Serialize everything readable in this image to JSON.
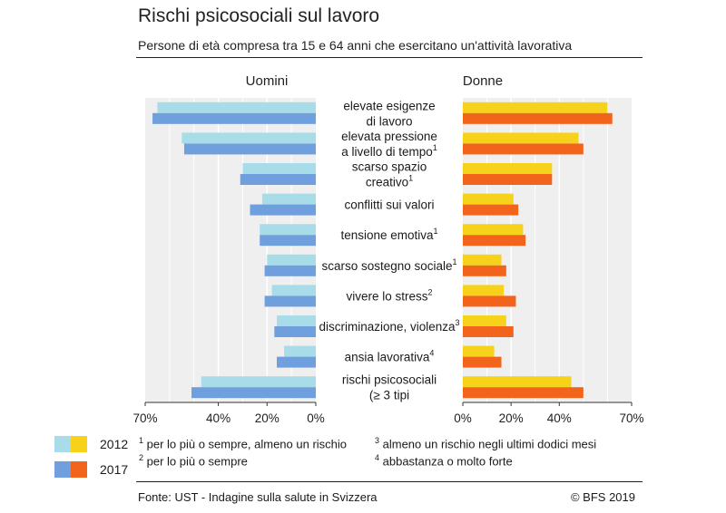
{
  "header": {
    "title": "Rischi psicosociali sul lavoro",
    "subtitle": "Persone di età compresa tra 15 e 64 anni che esercitano un'attività lavorativa"
  },
  "colors": {
    "men_2012": "#a7dce8",
    "men_2017": "#6f9fdc",
    "women_2012": "#f7d21b",
    "women_2017": "#f2641b",
    "panel_bg": "#efefef",
    "grid": "#ffffff"
  },
  "chart_data": {
    "type": "bar",
    "orientation": "horizontal",
    "layout": "back-to-back",
    "panels": [
      "Uomini",
      "Donne"
    ],
    "categories": [
      {
        "label": [
          "elevate esigenze",
          "di lavoro"
        ],
        "sup": ""
      },
      {
        "label": [
          "elevata pressione",
          "a livello di tempo"
        ],
        "sup": "1"
      },
      {
        "label": [
          "scarso spazio",
          "creativo"
        ],
        "sup": "1"
      },
      {
        "label": [
          "conflitti sui valori"
        ],
        "sup": ""
      },
      {
        "label": [
          "tensione emotiva"
        ],
        "sup": "1"
      },
      {
        "label": [
          "scarso sostegno sociale"
        ],
        "sup": "1"
      },
      {
        "label": [
          "vivere lo stress"
        ],
        "sup": "2"
      },
      {
        "label": [
          "discriminazione, violenza"
        ],
        "sup": "3"
      },
      {
        "label": [
          "ansia lavorativa"
        ],
        "sup": "4"
      },
      {
        "label": [
          "rischi psicosociali",
          "(≥ 3 tipi"
        ],
        "sup": ""
      }
    ],
    "series": [
      {
        "name": "2012",
        "panel": "Uomini",
        "values": [
          65,
          55,
          30,
          22,
          23,
          20,
          18,
          16,
          13,
          47
        ]
      },
      {
        "name": "2017",
        "panel": "Uomini",
        "values": [
          67,
          54,
          31,
          27,
          23,
          21,
          21,
          17,
          16,
          51
        ]
      },
      {
        "name": "2012",
        "panel": "Donne",
        "values": [
          60,
          48,
          37,
          21,
          25,
          16,
          17,
          18,
          13,
          45
        ]
      },
      {
        "name": "2017",
        "panel": "Donne",
        "values": [
          62,
          50,
          37,
          23,
          26,
          18,
          22,
          21,
          16,
          50
        ]
      }
    ],
    "xlim": [
      0,
      70
    ],
    "ticks": [
      0,
      20,
      40,
      70
    ],
    "tick_labels_men": [
      "70%",
      "40%",
      "20%",
      "0%"
    ],
    "tick_labels_women": [
      "0%",
      "20%",
      "40%",
      "70%"
    ],
    "grid": true
  },
  "legend": [
    {
      "label": "2012"
    },
    {
      "label": "2017"
    }
  ],
  "notes": [
    {
      "num": "1",
      "text": " per lo più o sempre, almeno un rischio"
    },
    {
      "num": "2",
      "text": " per lo più o sempre"
    },
    {
      "num": "3",
      "text": " almeno un rischio negli ultimi dodici mesi"
    },
    {
      "num": "4",
      "text": " abbastanza o molto forte"
    }
  ],
  "footer": {
    "source": "Fonte: UST - Indagine sulla salute in Svizzera",
    "copyright": "© BFS 2019"
  }
}
